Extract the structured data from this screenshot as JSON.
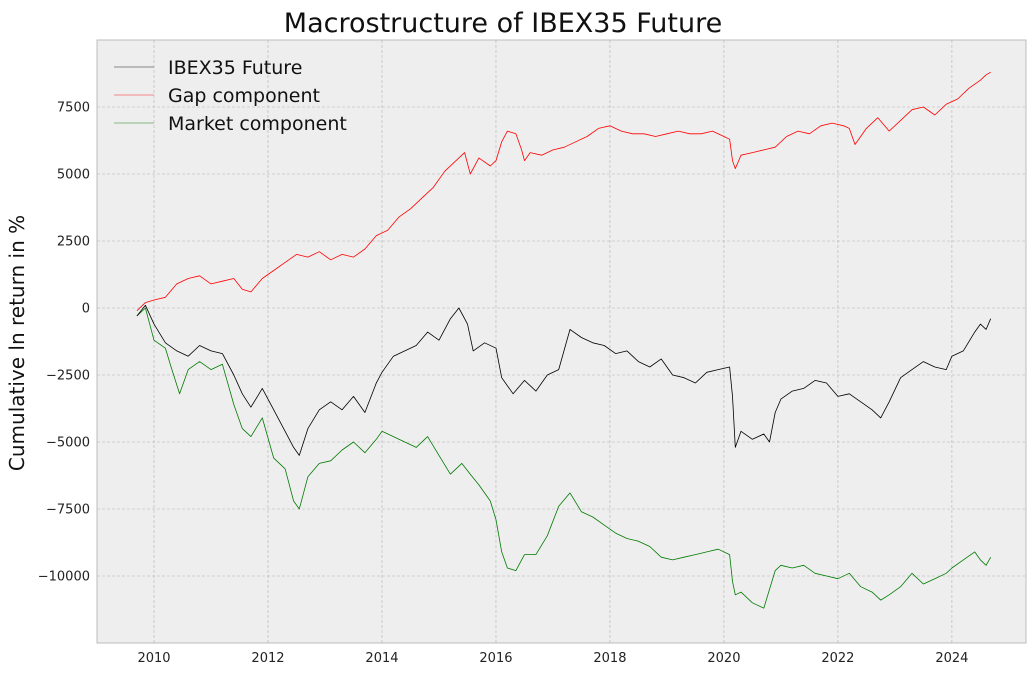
{
  "chart_data": {
    "type": "line",
    "title": "Macrostructure of IBEX35 Future",
    "xlabel": "",
    "ylabel": "Cumulative ln return in %",
    "xlim": [
      2009.0,
      2025.3
    ],
    "ylim": [
      -12500,
      10000
    ],
    "x_ticks": [
      "2010",
      "2012",
      "2014",
      "2016",
      "2018",
      "2020",
      "2022",
      "2024"
    ],
    "y_ticks": [
      "7500",
      "5000",
      "2500",
      "0",
      "−2500",
      "−5000",
      "−7500",
      "−10000"
    ],
    "grid": true,
    "legend_position": "top-left",
    "series": [
      {
        "name": "IBEX35 Future",
        "color": "#000000",
        "x": [
          2009.7,
          2009.85,
          2010.0,
          2010.2,
          2010.4,
          2010.6,
          2010.8,
          2011.0,
          2011.2,
          2011.4,
          2011.55,
          2011.7,
          2011.9,
          2012.1,
          2012.3,
          2012.45,
          2012.55,
          2012.7,
          2012.9,
          2013.1,
          2013.3,
          2013.5,
          2013.7,
          2013.9,
          2014.0,
          2014.2,
          2014.4,
          2014.6,
          2014.8,
          2015.0,
          2015.2,
          2015.35,
          2015.5,
          2015.6,
          2015.8,
          2016.0,
          2016.1,
          2016.3,
          2016.5,
          2016.7,
          2016.9,
          2017.1,
          2017.3,
          2017.5,
          2017.7,
          2017.9,
          2018.1,
          2018.3,
          2018.5,
          2018.7,
          2018.9,
          2019.1,
          2019.3,
          2019.5,
          2019.7,
          2019.9,
          2020.1,
          2020.15,
          2020.2,
          2020.3,
          2020.5,
          2020.7,
          2020.8,
          2020.9,
          2021.0,
          2021.2,
          2021.4,
          2021.6,
          2021.8,
          2022.0,
          2022.2,
          2022.4,
          2022.6,
          2022.75,
          2022.9,
          2023.1,
          2023.3,
          2023.5,
          2023.7,
          2023.9,
          2024.0,
          2024.2,
          2024.4,
          2024.5,
          2024.6,
          2024.68
        ],
        "y": [
          -300,
          100,
          -600,
          -1300,
          -1600,
          -1800,
          -1400,
          -1600,
          -1700,
          -2500,
          -3200,
          -3700,
          -3000,
          -3800,
          -4600,
          -5200,
          -5500,
          -4500,
          -3800,
          -3500,
          -3800,
          -3300,
          -3900,
          -2800,
          -2400,
          -1800,
          -1600,
          -1400,
          -900,
          -1200,
          -400,
          0,
          -600,
          -1600,
          -1300,
          -1500,
          -2600,
          -3200,
          -2700,
          -3100,
          -2500,
          -2300,
          -800,
          -1100,
          -1300,
          -1400,
          -1700,
          -1600,
          -2000,
          -2200,
          -1900,
          -2500,
          -2600,
          -2800,
          -2400,
          -2300,
          -2200,
          -3300,
          -5200,
          -4600,
          -4900,
          -4700,
          -5000,
          -3900,
          -3400,
          -3100,
          -3000,
          -2700,
          -2800,
          -3300,
          -3200,
          -3500,
          -3800,
          -4100,
          -3500,
          -2600,
          -2300,
          -2000,
          -2200,
          -2300,
          -1800,
          -1600,
          -900,
          -600,
          -800,
          -400
        ]
      },
      {
        "name": "Gap component",
        "color": "#ff0000",
        "x": [
          2009.7,
          2009.85,
          2010.0,
          2010.2,
          2010.4,
          2010.6,
          2010.8,
          2011.0,
          2011.2,
          2011.4,
          2011.55,
          2011.7,
          2011.9,
          2012.1,
          2012.3,
          2012.5,
          2012.7,
          2012.9,
          2013.1,
          2013.3,
          2013.5,
          2013.7,
          2013.9,
          2014.1,
          2014.3,
          2014.5,
          2014.7,
          2014.9,
          2015.1,
          2015.3,
          2015.45,
          2015.55,
          2015.7,
          2015.9,
          2016.0,
          2016.1,
          2016.2,
          2016.35,
          2016.45,
          2016.5,
          2016.6,
          2016.8,
          2017.0,
          2017.2,
          2017.4,
          2017.6,
          2017.8,
          2018.0,
          2018.2,
          2018.4,
          2018.6,
          2018.8,
          2019.0,
          2019.2,
          2019.4,
          2019.6,
          2019.8,
          2020.0,
          2020.1,
          2020.15,
          2020.2,
          2020.3,
          2020.5,
          2020.7,
          2020.9,
          2021.1,
          2021.3,
          2021.5,
          2021.7,
          2021.9,
          2022.1,
          2022.2,
          2022.3,
          2022.5,
          2022.7,
          2022.9,
          2023.1,
          2023.3,
          2023.5,
          2023.7,
          2023.9,
          2024.1,
          2024.3,
          2024.5,
          2024.6,
          2024.68
        ],
        "y": [
          -100,
          200,
          300,
          400,
          900,
          1100,
          1200,
          900,
          1000,
          1100,
          700,
          600,
          1100,
          1400,
          1700,
          2000,
          1900,
          2100,
          1800,
          2000,
          1900,
          2200,
          2700,
          2900,
          3400,
          3700,
          4100,
          4500,
          5100,
          5500,
          5800,
          5000,
          5600,
          5300,
          5500,
          6200,
          6600,
          6500,
          5900,
          5500,
          5800,
          5700,
          5900,
          6000,
          6200,
          6400,
          6700,
          6800,
          6600,
          6500,
          6500,
          6400,
          6500,
          6600,
          6500,
          6500,
          6600,
          6400,
          6300,
          5500,
          5200,
          5700,
          5800,
          5900,
          6000,
          6400,
          6600,
          6500,
          6800,
          6900,
          6800,
          6700,
          6100,
          6700,
          7100,
          6600,
          7000,
          7400,
          7500,
          7200,
          7600,
          7800,
          8200,
          8500,
          8700,
          8800
        ]
      },
      {
        "name": "Market component",
        "color": "#007a00",
        "x": [
          2009.7,
          2009.85,
          2010.0,
          2010.2,
          2010.3,
          2010.45,
          2010.6,
          2010.8,
          2011.0,
          2011.2,
          2011.4,
          2011.55,
          2011.7,
          2011.9,
          2012.1,
          2012.3,
          2012.45,
          2012.55,
          2012.7,
          2012.9,
          2013.1,
          2013.3,
          2013.5,
          2013.7,
          2013.9,
          2014.0,
          2014.2,
          2014.4,
          2014.6,
          2014.8,
          2015.0,
          2015.2,
          2015.4,
          2015.55,
          2015.7,
          2015.9,
          2016.0,
          2016.1,
          2016.2,
          2016.35,
          2016.5,
          2016.7,
          2016.9,
          2017.1,
          2017.3,
          2017.5,
          2017.7,
          2017.9,
          2018.1,
          2018.3,
          2018.5,
          2018.7,
          2018.9,
          2019.1,
          2019.3,
          2019.5,
          2019.7,
          2019.9,
          2020.1,
          2020.15,
          2020.2,
          2020.3,
          2020.5,
          2020.7,
          2020.8,
          2020.9,
          2021.0,
          2021.2,
          2021.4,
          2021.6,
          2021.8,
          2022.0,
          2022.2,
          2022.4,
          2022.6,
          2022.75,
          2022.9,
          2023.1,
          2023.3,
          2023.5,
          2023.7,
          2023.9,
          2024.0,
          2024.2,
          2024.4,
          2024.5,
          2024.6,
          2024.68
        ],
        "y": [
          -300,
          0,
          -1200,
          -1500,
          -2200,
          -3200,
          -2300,
          -2000,
          -2300,
          -2100,
          -3600,
          -4500,
          -4800,
          -4100,
          -5600,
          -6000,
          -7200,
          -7500,
          -6300,
          -5800,
          -5700,
          -5300,
          -5000,
          -5400,
          -4900,
          -4600,
          -4800,
          -5000,
          -5200,
          -4800,
          -5500,
          -6200,
          -5800,
          -6200,
          -6600,
          -7200,
          -7900,
          -9100,
          -9700,
          -9800,
          -9200,
          -9200,
          -8500,
          -7400,
          -6900,
          -7600,
          -7800,
          -8100,
          -8400,
          -8600,
          -8700,
          -8900,
          -9300,
          -9400,
          -9300,
          -9200,
          -9100,
          -9000,
          -9200,
          -10200,
          -10700,
          -10600,
          -11000,
          -11200,
          -10500,
          -9800,
          -9600,
          -9700,
          -9600,
          -9900,
          -10000,
          -10100,
          -9900,
          -10400,
          -10600,
          -10900,
          -10700,
          -10400,
          -9900,
          -10300,
          -10100,
          -9900,
          -9700,
          -9400,
          -9100,
          -9400,
          -9600,
          -9300
        ]
      }
    ]
  }
}
